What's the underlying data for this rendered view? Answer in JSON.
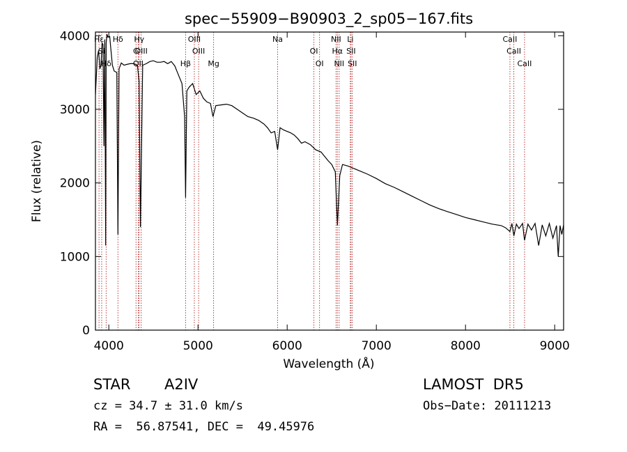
{
  "chart_data": {
    "type": "line",
    "title": "spec−55909−B90903_2_sp05−167.fits",
    "xlabel": "Wavelength (Å)",
    "ylabel": "Flux (relative)",
    "xlim": [
      3850,
      9100
    ],
    "ylim": [
      0,
      4050
    ],
    "x_ticks": [
      4000,
      5000,
      6000,
      7000,
      8000,
      9000
    ],
    "y_ticks": [
      0,
      1000,
      2000,
      3000,
      4000
    ],
    "grid": false,
    "series": [
      {
        "color": "#000000",
        "x": [
          3850,
          3870,
          3885,
          3900,
          3912,
          3925,
          3935,
          3945,
          3955,
          3965,
          3970,
          3980,
          3990,
          4000,
          4010,
          4020,
          4040,
          4060,
          4090,
          4102,
          4115,
          4140,
          4170,
          4200,
          4240,
          4280,
          4320,
          4340,
          4355,
          4380,
          4420,
          4460,
          4500,
          4540,
          4580,
          4620,
          4660,
          4700,
          4740,
          4780,
          4820,
          4850,
          4861,
          4875,
          4900,
          4940,
          4980,
          5020,
          5060,
          5100,
          5140,
          5168,
          5200,
          5260,
          5320,
          5380,
          5440,
          5500,
          5560,
          5620,
          5680,
          5740,
          5780,
          5820,
          5860,
          5893,
          5920,
          5960,
          6000,
          6040,
          6080,
          6120,
          6160,
          6200,
          6260,
          6320,
          6380,
          6420,
          6460,
          6500,
          6540,
          6563,
          6590,
          6620,
          6680,
          6740,
          6800,
          6900,
          7000,
          7100,
          7200,
          7300,
          7400,
          7500,
          7600,
          7700,
          7800,
          7900,
          8000,
          8100,
          8200,
          8300,
          8400,
          8450,
          8498,
          8520,
          8542,
          8570,
          8600,
          8640,
          8662,
          8700,
          8740,
          8780,
          8820,
          8860,
          8900,
          8940,
          8980,
          9020,
          9040,
          9060,
          9080,
          9100
        ],
        "y": [
          3200,
          3700,
          3800,
          3550,
          3600,
          3900,
          3880,
          2500,
          3950,
          1150,
          3900,
          4020,
          3980,
          3990,
          3990,
          3850,
          3600,
          3520,
          3500,
          1300,
          3550,
          3630,
          3600,
          3610,
          3620,
          3620,
          3600,
          3380,
          1400,
          3600,
          3620,
          3650,
          3660,
          3640,
          3640,
          3650,
          3620,
          3650,
          3590,
          3470,
          3350,
          2900,
          1800,
          3250,
          3300,
          3350,
          3200,
          3250,
          3150,
          3100,
          3080,
          2900,
          3050,
          3060,
          3070,
          3050,
          3000,
          2950,
          2900,
          2880,
          2850,
          2800,
          2750,
          2680,
          2700,
          2450,
          2750,
          2720,
          2700,
          2680,
          2650,
          2600,
          2540,
          2560,
          2520,
          2450,
          2420,
          2360,
          2300,
          2250,
          2150,
          1420,
          2100,
          2250,
          2230,
          2200,
          2170,
          2120,
          2060,
          1990,
          1940,
          1880,
          1820,
          1760,
          1700,
          1650,
          1610,
          1570,
          1530,
          1500,
          1470,
          1440,
          1420,
          1390,
          1340,
          1450,
          1280,
          1440,
          1380,
          1450,
          1220,
          1440,
          1360,
          1450,
          1150,
          1430,
          1280,
          1450,
          1250,
          1420,
          1000,
          1420,
          1300,
          1430
        ]
      }
    ],
    "lines": [
      {
        "label": "Hε",
        "wavelength": 3890
      },
      {
        "label": "Si",
        "wavelength": 3920
      },
      {
        "label": "Hδ",
        "wavelength": 3970
      },
      {
        "label": "Hδ",
        "wavelength": 4102
      },
      {
        "label": "G",
        "wavelength": 4305
      },
      {
        "label": "OII",
        "wavelength": 4330
      },
      {
        "label": "Hγ",
        "wavelength": 4340
      },
      {
        "label": "OIII",
        "wavelength": 4363
      },
      {
        "label": "Hβ",
        "wavelength": 4861
      },
      {
        "label": "OIII",
        "wavelength": 4959
      },
      {
        "label": "OIII",
        "wavelength": 5007
      },
      {
        "label": "Mg",
        "wavelength": 5175
      },
      {
        "label": "Na",
        "wavelength": 5893
      },
      {
        "label": "OI",
        "wavelength": 6300
      },
      {
        "label": "OI",
        "wavelength": 6363
      },
      {
        "label": "NII",
        "wavelength": 6548
      },
      {
        "label": "Hα",
        "wavelength": 6563
      },
      {
        "label": "NII",
        "wavelength": 6583
      },
      {
        "label": "Li",
        "wavelength": 6708
      },
      {
        "label": "SII",
        "wavelength": 6716
      },
      {
        "label": "SII",
        "wavelength": 6731
      },
      {
        "label": "CaII",
        "wavelength": 8498
      },
      {
        "label": "CaII",
        "wavelength": 8542
      },
      {
        "label": "CaII",
        "wavelength": 8662
      }
    ],
    "line_color": "#b22222"
  },
  "info": {
    "object_class": "STAR",
    "subclass": "A2IV",
    "survey": "LAMOST  DR5",
    "redshift": "cz = 34.7 ± 31.0 km/s",
    "obs_date": "Obs−Date: 20111213",
    "coords": "RA =  56.87541, DEC =  49.45976"
  }
}
